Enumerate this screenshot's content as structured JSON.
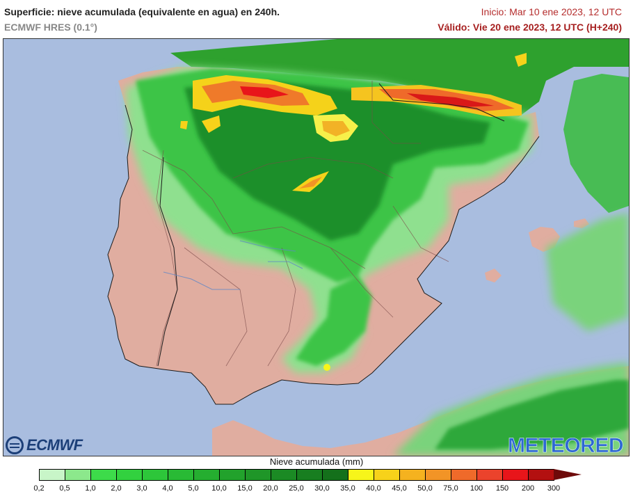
{
  "header": {
    "title": "Superficie: nieve acumulada (equivalente en agua) en 240h.",
    "model": "ECMWF HRES (0.1°)",
    "init": "Inicio: Mar 10 ene 2023, 12 UTC",
    "valid": "Válido: Vie 20 ene 2023, 12 UTC (H+240)"
  },
  "logos": {
    "left": "ECMWF",
    "right": "METEORED"
  },
  "legend": {
    "title": "Nieve acumulada (mm)",
    "ticks": [
      "0,2",
      "0,5",
      "1,0",
      "2,0",
      "3,0",
      "4,0",
      "5,0",
      "10,0",
      "15,0",
      "20,0",
      "25,0",
      "30,0",
      "35,0",
      "40,0",
      "45,0",
      "50,0",
      "75,0",
      "100",
      "150",
      "200",
      "300"
    ],
    "colors": [
      "#c8f5c8",
      "#8ce88c",
      "#3ddb4a",
      "#32d13f",
      "#2dc63a",
      "#29ba35",
      "#25ae30",
      "#22a22c",
      "#1f9628",
      "#1b8a24",
      "#187e20",
      "#14701b",
      "#f7f51a",
      "#f7d21a",
      "#f5b21f",
      "#f29426",
      "#ef6a2a",
      "#eb432c",
      "#e8151a",
      "#b31010"
    ],
    "over_color": "#6e0a0a"
  },
  "map": {
    "sea_color": "#a9bddf",
    "land_color": "#e0ada0",
    "north_land_color": "#2e9e2e"
  }
}
